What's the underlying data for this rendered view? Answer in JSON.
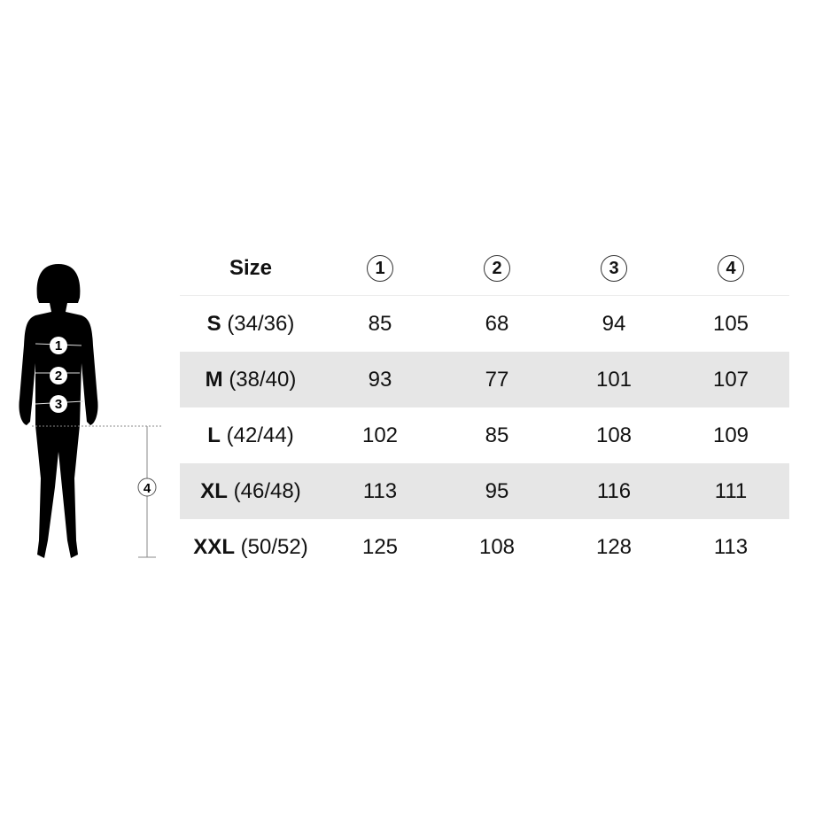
{
  "figure": {
    "markers": [
      "1",
      "2",
      "3"
    ],
    "height_marker": "4"
  },
  "table": {
    "header": {
      "size": "Size",
      "columns": [
        "1",
        "2",
        "3",
        "4"
      ]
    },
    "rows": [
      {
        "size": "S",
        "eu": "(34/36)",
        "values": [
          "85",
          "68",
          "94",
          "105"
        ]
      },
      {
        "size": "M",
        "eu": "(38/40)",
        "values": [
          "93",
          "77",
          "101",
          "107"
        ]
      },
      {
        "size": "L",
        "eu": "(42/44)",
        "values": [
          "102",
          "85",
          "108",
          "109"
        ]
      },
      {
        "size": "XL",
        "eu": "(46/48)",
        "values": [
          "113",
          "95",
          "116",
          "111"
        ]
      },
      {
        "size": "XXL",
        "eu": "(50/52)",
        "values": [
          "125",
          "108",
          "128",
          "113"
        ]
      }
    ]
  },
  "colors": {
    "stripe": "#e6e6e6",
    "silhouette": "#000000"
  }
}
